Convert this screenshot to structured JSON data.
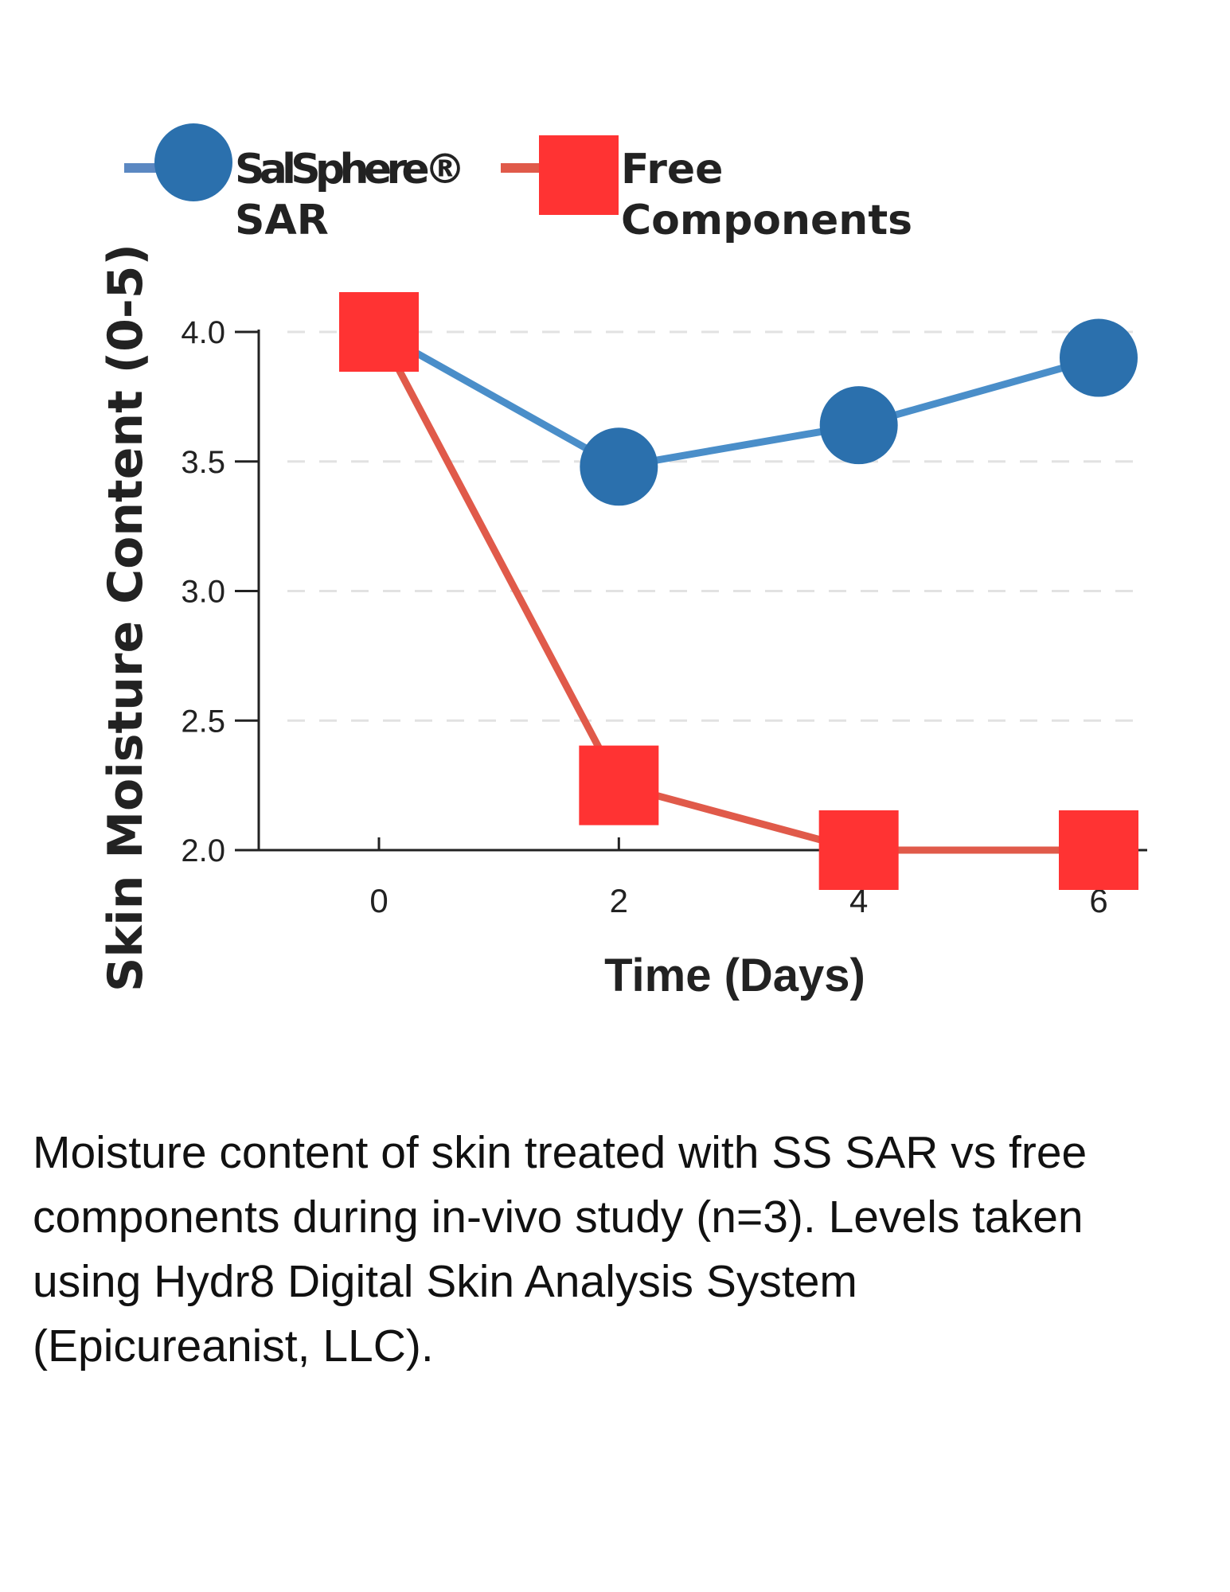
{
  "chart_data": {
    "type": "line",
    "xlabel": "Time (Days)",
    "ylabel": "Skin Moisture Content (0-5)",
    "x": [
      0,
      2,
      4,
      6
    ],
    "xticks": [
      "0",
      "2",
      "4",
      "6"
    ],
    "yticks": [
      "2.0",
      "2.5",
      "3.0",
      "3.5",
      "4.0"
    ],
    "ylim": [
      2.0,
      4.0
    ],
    "grid": "horizontal dashed",
    "legend_placement": "top",
    "series": [
      {
        "name": "SalSphere® SAR",
        "name_lines": [
          "SalSphere®",
          "SAR"
        ],
        "marker": "circle",
        "color": "#2b70ad",
        "line_color": "#4a8ec9",
        "values": [
          4.0,
          3.48,
          3.64,
          3.9
        ]
      },
      {
        "name": "Free Components",
        "name_lines": [
          "Free",
          "Components"
        ],
        "marker": "square",
        "color": "#ff3333",
        "line_color": "#e05a4a",
        "values": [
          4.0,
          2.25,
          2.0,
          2.0
        ]
      }
    ]
  },
  "caption": {
    "lines": [
      "Moisture content of skin treated with SS SAR vs free",
      "components during in-vivo study (n=3). Levels taken",
      "using Hydr8 Digital Skin Analysis System",
      "(Epicureanist, LLC)."
    ]
  }
}
